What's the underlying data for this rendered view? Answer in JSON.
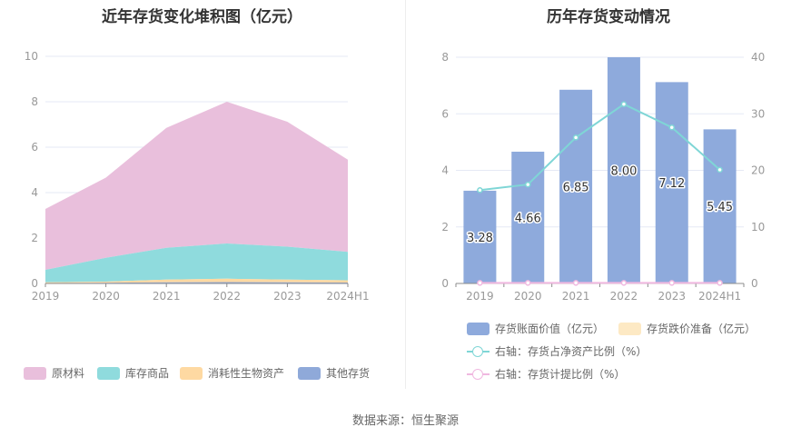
{
  "source_text": "数据来源：恒生聚源",
  "left_chart": {
    "title": "近年存货变化堆积图（亿元）",
    "legend": [
      {
        "label": "原材料",
        "color": "#e9bfdc"
      },
      {
        "label": "库存商品",
        "color": "#8fdbdd"
      },
      {
        "label": "消耗性生物资产",
        "color": "#fed9a2"
      },
      {
        "label": "其他存货",
        "color": "#8fa9d9"
      }
    ]
  },
  "right_chart": {
    "title": "历年存货变动情况",
    "legend": [
      {
        "label": "存货账面价值（亿元）",
        "color": "#8eaadc",
        "kind": "bar"
      },
      {
        "label": "存货跌价准备（亿元）",
        "color": "#fde9c4",
        "kind": "bar"
      },
      {
        "label": "右轴：存货占净资产比例（%）",
        "color": "#7fd6d6",
        "kind": "line"
      },
      {
        "label": "右轴：存货计提比例（%）",
        "color": "#f0b8e0",
        "kind": "line"
      }
    ]
  },
  "chart_data": [
    {
      "type": "area",
      "stacked": true,
      "title": "近年存货变化堆积图（亿元）",
      "categories": [
        "2019",
        "2020",
        "2021",
        "2022",
        "2023",
        "2024H1"
      ],
      "ylim": [
        0,
        10
      ],
      "yticks": [
        0,
        2,
        4,
        6,
        8,
        10
      ],
      "grid": true,
      "legend_position": "bottom",
      "series": [
        {
          "name": "其他存货",
          "color": "#8fa9d9",
          "values": [
            0.02,
            0.03,
            0.05,
            0.06,
            0.05,
            0.04
          ]
        },
        {
          "name": "消耗性生物资产",
          "color": "#fed9a2",
          "values": [
            0.03,
            0.05,
            0.12,
            0.15,
            0.12,
            0.1
          ]
        },
        {
          "name": "库存商品",
          "color": "#8fdbdd",
          "values": [
            0.55,
            1.05,
            1.4,
            1.55,
            1.45,
            1.25
          ]
        },
        {
          "name": "原材料",
          "color": "#e9bfdc",
          "values": [
            2.68,
            3.53,
            5.28,
            6.24,
            5.5,
            4.06
          ]
        }
      ]
    },
    {
      "type": "bar",
      "title": "历年存货变动情况",
      "categories": [
        "2019",
        "2020",
        "2021",
        "2022",
        "2023",
        "2024H1"
      ],
      "ylim": [
        0,
        8
      ],
      "yticks": [
        0,
        2,
        4,
        6,
        8
      ],
      "y2lim": [
        0,
        40
      ],
      "y2ticks": [
        0,
        10,
        20,
        30,
        40
      ],
      "grid": true,
      "legend_position": "bottom",
      "series": [
        {
          "name": "存货账面价值（亿元）",
          "kind": "bar",
          "axis": "left",
          "color": "#8eaadc",
          "values": [
            3.28,
            4.66,
            6.85,
            8.0,
            7.12,
            5.45
          ],
          "labels": [
            "3.28",
            "4.66",
            "6.85",
            "8.00",
            "7.12",
            "5.45"
          ]
        },
        {
          "name": "存货跌价准备（亿元）",
          "kind": "bar",
          "axis": "left",
          "color": "#fde9c4",
          "values": [
            0,
            0,
            0,
            0,
            0,
            0
          ]
        },
        {
          "name": "右轴：存货占净资产比例（%）",
          "kind": "line",
          "axis": "right",
          "color": "#7fd6d6",
          "values": [
            16.5,
            17.5,
            25.8,
            31.7,
            27.6,
            20.1
          ]
        },
        {
          "name": "右轴：存货计提比例（%）",
          "kind": "line",
          "axis": "right",
          "color": "#f0b8e0",
          "values": [
            0.1,
            0.1,
            0.1,
            0.1,
            0.1,
            0.1
          ]
        }
      ]
    }
  ]
}
